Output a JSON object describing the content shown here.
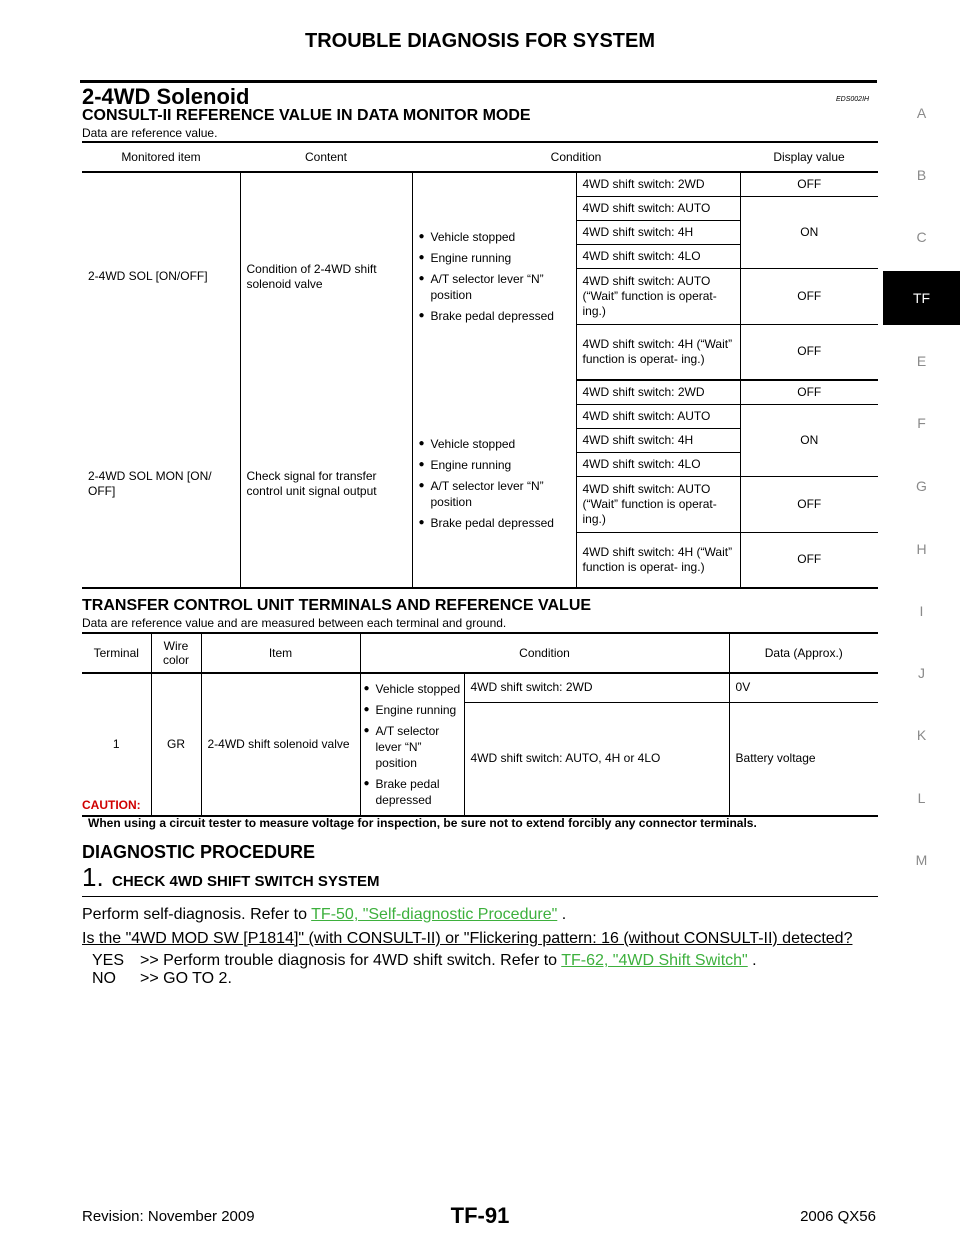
{
  "header": {
    "title": "TROUBLE DIAGNOSIS FOR SYSTEM"
  },
  "section": {
    "title": "2-4WD Solenoid",
    "code": "EDS002IH"
  },
  "consult": {
    "heading": "CONSULT-II REFERENCE VALUE IN DATA MONITOR MODE",
    "note": "Data are reference value.",
    "columns": [
      "Monitored item",
      "Content",
      "Condition",
      "Display value"
    ],
    "conditions": [
      "Vehicle stopped",
      "Engine running",
      "A/T selector lever “N” position",
      "Brake pedal depressed"
    ],
    "groups": [
      {
        "item": "2-4WD SOL [ON/OFF]",
        "content": "Condition of 2-4WD shift solenoid valve",
        "switches": [
          "4WD shift switch: 2WD",
          "4WD shift switch: AUTO",
          "4WD shift switch: 4H",
          "4WD shift switch: 4LO",
          "4WD shift switch: AUTO (“Wait” function is operat- ing.)",
          "4WD shift switch: 4H (“Wait” function is operat- ing.)"
        ],
        "values": [
          "OFF",
          "ON",
          "OFF",
          "OFF"
        ]
      },
      {
        "item": "2-4WD SOL MON [ON/ OFF]",
        "content": "Check signal for transfer control unit signal output",
        "switches": [
          "4WD shift switch: 2WD",
          "4WD shift switch: AUTO",
          "4WD shift switch: 4H",
          "4WD shift switch: 4LO",
          "4WD shift switch: AUTO (“Wait” function is operat- ing.)",
          "4WD shift switch: 4H (“Wait” function is operat- ing.)"
        ],
        "values": [
          "OFF",
          "ON",
          "OFF",
          "OFF"
        ]
      }
    ]
  },
  "terminals": {
    "heading": "TRANSFER CONTROL UNIT TERMINALS AND REFERENCE VALUE",
    "note": "Data are reference value and are measured between each terminal and ground.",
    "columns": [
      "Terminal",
      "Wire color",
      "Item",
      "Condition",
      "Data (Approx.)"
    ],
    "row": {
      "terminal": "1",
      "wire": "GR",
      "item": "2-4WD shift solenoid valve",
      "conditions": [
        "Vehicle stopped",
        "Engine running",
        "A/T selector lever “N” position",
        "Brake pedal depressed"
      ],
      "cases": [
        {
          "switch": "4WD shift switch: 2WD",
          "data": "0V"
        },
        {
          "switch": "4WD shift switch: AUTO, 4H or 4LO",
          "data": "Battery voltage"
        }
      ]
    }
  },
  "caution": {
    "title": "CAUTION:",
    "text": "When using a circuit tester to measure voltage for inspection, be sure not to extend forcibly any connector terminals."
  },
  "procedure": {
    "heading": "DIAGNOSTIC PROCEDURE",
    "step_number": "1.",
    "step_title": "CHECK 4WD SHIFT SWITCH SYSTEM",
    "instruction_prefix": "Perform self-diagnosis. Refer to ",
    "instruction_link": "TF-50, \"Self-diagnostic Procedure\"",
    "instruction_suffix": " .",
    "question": "Is the \"4WD MOD SW [P1814]\" (with CONSULT-II) or \"Flickering pattern: 16 (without CONSULT-II) detected?",
    "yes_label": "YES",
    "yes_text": ">> Perform trouble diagnosis for 4WD shift switch. Refer to ",
    "yes_link": "TF-62, \"4WD Shift Switch\"",
    "yes_suffix": " .",
    "no_label": "NO",
    "no_text": ">> GO TO 2."
  },
  "side_tabs": [
    "A",
    "B",
    "C",
    "TF",
    "E",
    "F",
    "G",
    "H",
    "I",
    "J",
    "K",
    "L",
    "M"
  ],
  "active_tab": "TF",
  "footer": {
    "left": "Revision: November 2009",
    "center": "TF-91",
    "right": "2006 QX56"
  },
  "colors": {
    "link": "#3db03d",
    "caution": "#d00000",
    "active_tab_bg": "#000000"
  }
}
